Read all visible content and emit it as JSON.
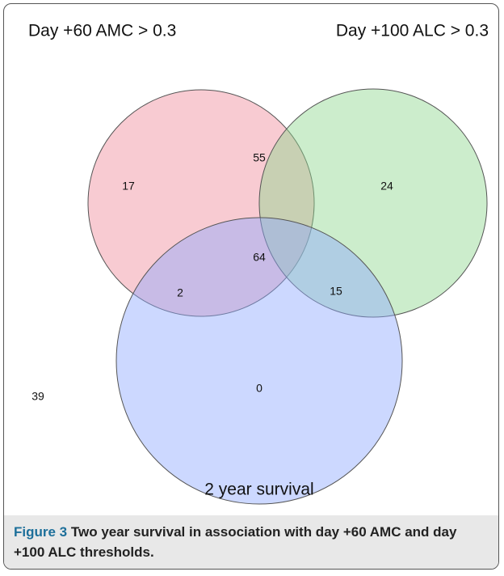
{
  "figure": {
    "sets": [
      {
        "label": "Day +60 AMC > 0.3",
        "color": "#f08c9c"
      },
      {
        "label": "Day +100 ALC > 0.3",
        "color": "#8fd88f"
      },
      {
        "label": "2 year survival",
        "color": "#8fa8ff"
      }
    ],
    "regions": {
      "amc_only": 17,
      "amc_alc": 55,
      "alc_only": 24,
      "all_three": 64,
      "amc_survival": 2,
      "alc_survival": 15,
      "survival_only": 0,
      "none": 39
    }
  },
  "caption": {
    "label": "Figure 3",
    "text": "Two year survival in association with day +60 AMC and day +100 ALC thresholds."
  }
}
